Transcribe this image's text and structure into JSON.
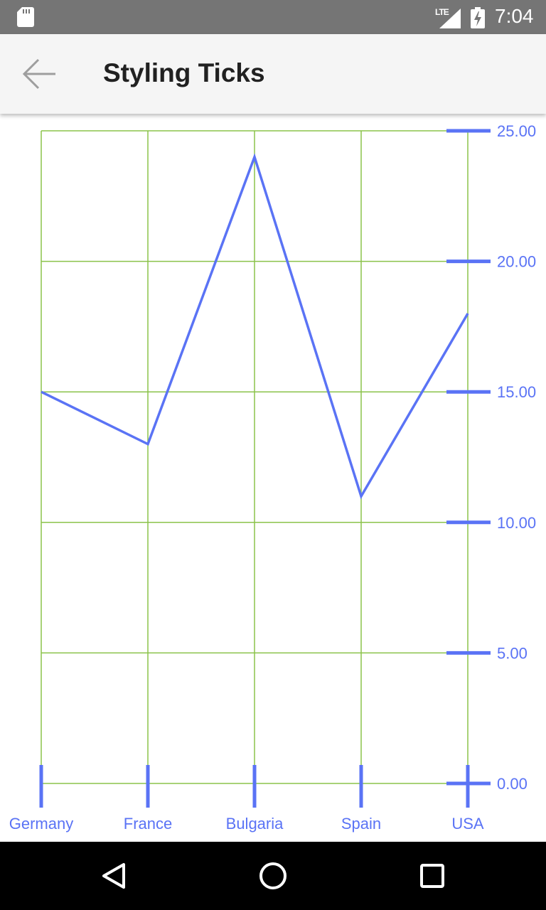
{
  "status_bar": {
    "network": "LTE",
    "time": "7:04",
    "icons": [
      "sd-card-icon",
      "signal-icon",
      "battery-charging-icon"
    ]
  },
  "app_bar": {
    "title": "Styling Ticks",
    "back_icon": "arrow-left-icon"
  },
  "colors": {
    "line": "#5a73f5",
    "grid": "#8bc34a",
    "tick": "#5a73f5",
    "label": "#5a73f5",
    "status_bar": "#757575",
    "app_bar": "#f5f5f5",
    "nav_bar": "#000000"
  },
  "chart_data": {
    "type": "line",
    "title": "",
    "xlabel": "",
    "ylabel": "",
    "categories": [
      "Germany",
      "France",
      "Bulgaria",
      "Spain",
      "USA"
    ],
    "series": [
      {
        "values": [
          15,
          13,
          24,
          11,
          18
        ]
      }
    ],
    "ylim": [
      0,
      25
    ],
    "y_ticks": [
      "0.00",
      "5.00",
      "10.00",
      "15.00",
      "20.00",
      "25.00"
    ],
    "y_axis_position": "right",
    "grid": true
  },
  "nav_bar": {
    "buttons": [
      "back-triangle-icon",
      "home-circle-icon",
      "recents-square-icon"
    ]
  }
}
